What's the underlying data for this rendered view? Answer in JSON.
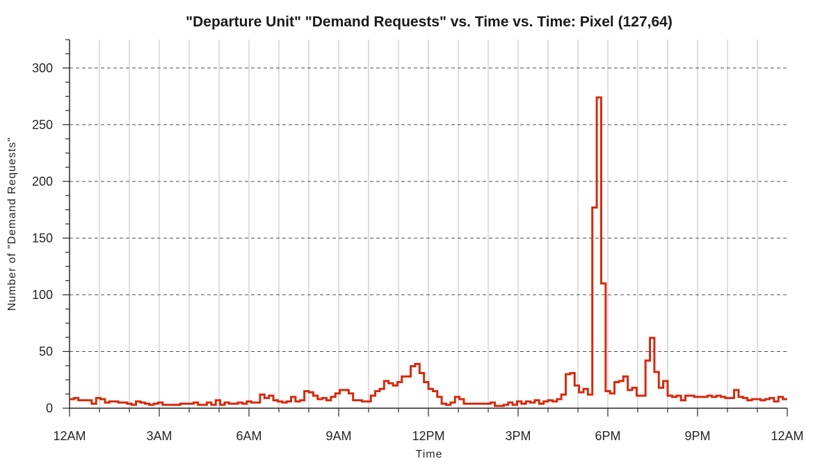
{
  "chart_data": {
    "type": "line",
    "step": true,
    "title": "\"Departure Unit\" \"Demand Requests\" vs. Time vs. Time: Pixel (127,64)",
    "xlabel": "Time",
    "ylabel": "Number of \"Demand Requests\"",
    "xlim": [
      "12AM",
      "12AM"
    ],
    "ylim": [
      0,
      325
    ],
    "x_ticks": [
      "12AM",
      "3AM",
      "6AM",
      "9AM",
      "12PM",
      "3PM",
      "6PM",
      "9PM",
      "12AM"
    ],
    "y_ticks": [
      0,
      50,
      100,
      150,
      200,
      250,
      300
    ],
    "interval_minutes": 10,
    "grid": {
      "x": "solid-light-gray",
      "y": "dashed-dark"
    },
    "colors": {
      "line": "#d62a0d",
      "grid_x": "#bfbfbf",
      "grid_y": "#4d4d4d",
      "axis": "#262626"
    },
    "series": [
      {
        "values": [
          8,
          9,
          7,
          7,
          7,
          4,
          9,
          8,
          5,
          6,
          6,
          5,
          5,
          4,
          3,
          6,
          5,
          4,
          3,
          4,
          5,
          3,
          3,
          3,
          3,
          4,
          4,
          4,
          5,
          3,
          3,
          5,
          3,
          7,
          3,
          5,
          4,
          4,
          5,
          4,
          6,
          5,
          5,
          12,
          9,
          11,
          7,
          6,
          5,
          6,
          10,
          6,
          7,
          15,
          14,
          11,
          8,
          9,
          7,
          10,
          13,
          16,
          16,
          13,
          7,
          7,
          6,
          6,
          11,
          15,
          17,
          24,
          22,
          20,
          23,
          28,
          28,
          37,
          39,
          31,
          23,
          17,
          15,
          10,
          4,
          3,
          5,
          10,
          8,
          4,
          4,
          4,
          4,
          4,
          4,
          5,
          2,
          2,
          3,
          5,
          3,
          6,
          4,
          6,
          5,
          7,
          4,
          6,
          7,
          6,
          8,
          12,
          30,
          31,
          20,
          14,
          17,
          12,
          177,
          274,
          110,
          15,
          13,
          23,
          24,
          28,
          16,
          18,
          11,
          11,
          42,
          62,
          32,
          18,
          24,
          11,
          10,
          11,
          7,
          11,
          11,
          10,
          10,
          10,
          11,
          10,
          11,
          10,
          9,
          9,
          16,
          10,
          9,
          7,
          8,
          8,
          7,
          8,
          9,
          6,
          10,
          8
        ]
      }
    ]
  }
}
